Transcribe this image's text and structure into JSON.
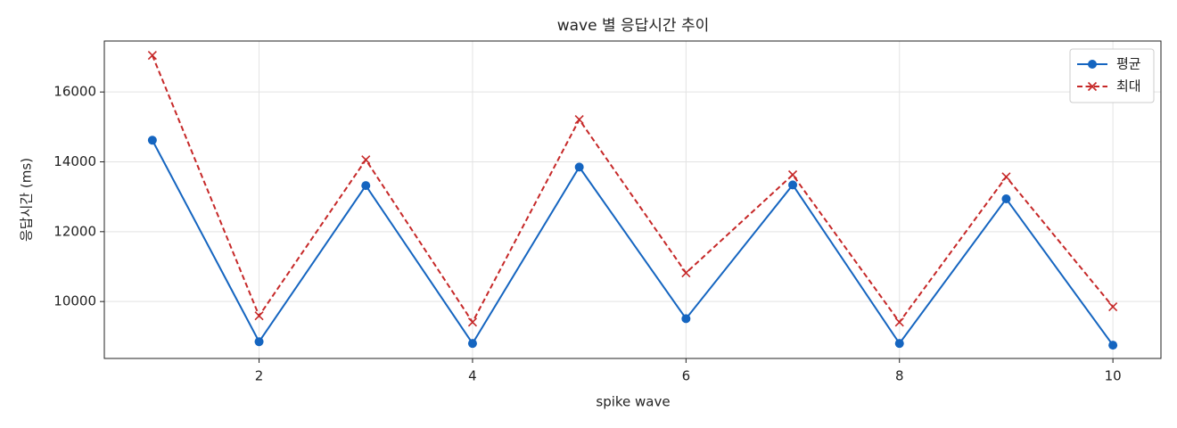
{
  "chart_data": {
    "type": "line",
    "title": "wave 별 응답시간 추이",
    "x_label": "spike wave",
    "y_label": "응답시간 (ms)",
    "x": [
      1,
      2,
      3,
      4,
      5,
      6,
      7,
      8,
      9,
      10
    ],
    "series": [
      {
        "name": "평균",
        "color": "#1565c0",
        "marker": "o",
        "dashed": false,
        "values": [
          14620,
          8850,
          13320,
          8800,
          13850,
          9510,
          13340,
          8800,
          12940,
          8750
        ]
      },
      {
        "name": "최대",
        "color": "#c62828",
        "marker": "x",
        "dashed": true,
        "values": [
          17050,
          9590,
          14060,
          9410,
          15210,
          10820,
          13630,
          9410,
          13570,
          9850
        ]
      }
    ],
    "xlim": [
      0.55,
      10.45
    ],
    "ylim": [
      8370,
      17460
    ],
    "xticks": [
      2,
      4,
      6,
      8,
      10
    ],
    "yticks": [
      10000,
      12000,
      14000,
      16000
    ],
    "grid": true,
    "legend": "upper right"
  }
}
